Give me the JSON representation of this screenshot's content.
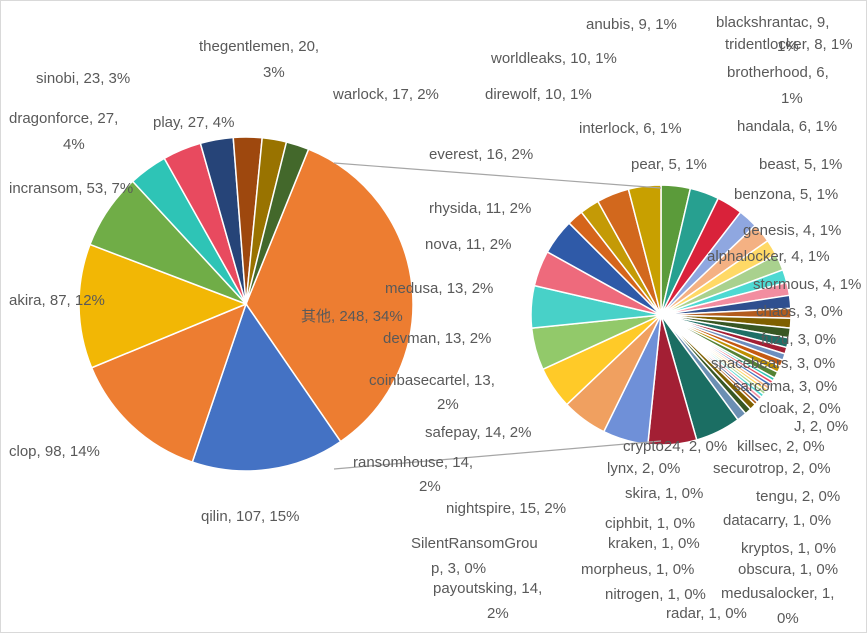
{
  "chart_data": {
    "type": "pie",
    "subtype": "pie-of-pie",
    "title": "",
    "main_pie": [
      {
        "label": "其他, 248, 34%",
        "name": "其他",
        "value": 248,
        "percent": "34%",
        "color": "#ed7d31"
      },
      {
        "label": "qilin, 107, 15%",
        "name": "qilin",
        "value": 107,
        "percent": "15%",
        "color": "#4472c4"
      },
      {
        "label": "clop, 98, 14%",
        "name": "clop",
        "value": 98,
        "percent": "14%",
        "color": "#ed7d31"
      },
      {
        "label": "akira, 87, 12%",
        "name": "akira",
        "value": 87,
        "percent": "12%",
        "color": "#f2b705"
      },
      {
        "label": "incransom, 53, 7%",
        "name": "incransom",
        "value": 53,
        "percent": "7%",
        "color": "#70ad47"
      },
      {
        "label": "dragonforce, 27, 4%",
        "name": "dragonforce",
        "value": 27,
        "percent": "4%",
        "color": "#2ec4b6"
      },
      {
        "label": "play, 27, 4%",
        "name": "play",
        "value": 27,
        "percent": "4%",
        "color": "#e84a5f"
      },
      {
        "label": "sinobi, 23, 3%",
        "name": "sinobi",
        "value": 23,
        "percent": "3%",
        "color": "#264478"
      },
      {
        "label": "thegentlemen, 20, 3%",
        "name": "thegentlemen",
        "value": 20,
        "percent": "3%",
        "color": "#9e480e"
      },
      {
        "label": "warlock, 17, 2%",
        "name": "warlock",
        "value": 17,
        "percent": "2%",
        "color": "#997300"
      },
      {
        "label": "everest, 16, 2%",
        "name": "everest",
        "value": 16,
        "percent": "2%",
        "color": "#43682b"
      }
    ],
    "secondary_pie": [
      {
        "label": "anubis, 9, 1%",
        "name": "anubis",
        "value": 9,
        "percent": "1%",
        "color": "#5b9b3a"
      },
      {
        "label": "blackshrantac, 9, 1%",
        "name": "blackshrantac",
        "value": 9,
        "percent": "1%",
        "color": "#27a090"
      },
      {
        "label": "tridentlocker, 8, 1%",
        "name": "tridentlocker",
        "value": 8,
        "percent": "1%",
        "color": "#d9223a"
      },
      {
        "label": "brotherhood, 6, 1%",
        "name": "brotherhood",
        "value": 6,
        "percent": "1%",
        "color": "#8fa7e0"
      },
      {
        "label": "handala, 6, 1%",
        "name": "handala",
        "value": 6,
        "percent": "1%",
        "color": "#f4b183"
      },
      {
        "label": "beast, 5, 1%",
        "name": "beast",
        "value": 5,
        "percent": "1%",
        "color": "#ffd966"
      },
      {
        "label": "benzona, 5, 1%",
        "name": "benzona",
        "value": 5,
        "percent": "1%",
        "color": "#a9d18e"
      },
      {
        "label": "genesis, 4, 1%",
        "name": "genesis",
        "value": 4,
        "percent": "1%",
        "color": "#4dd9d2"
      },
      {
        "label": "alphalocker, 4, 1%",
        "name": "alphalocker",
        "value": 4,
        "percent": "1%",
        "color": "#f28da0"
      },
      {
        "label": "stormous, 4, 1%",
        "name": "stormous",
        "value": 4,
        "percent": "1%",
        "color": "#2f4f8f"
      },
      {
        "label": "chaos, 3, 0%",
        "name": "chaos",
        "value": 3,
        "percent": "0%",
        "color": "#b35c1e"
      },
      {
        "label": "fuzu, 3, 0%",
        "name": "fuzu",
        "value": 3,
        "percent": "0%",
        "color": "#7f6000"
      },
      {
        "label": "spacebears, 3, 0%",
        "name": "spacebears",
        "value": 3,
        "percent": "0%",
        "color": "#385723"
      },
      {
        "label": "sarcoma, 3, 0%",
        "name": "sarcoma",
        "value": 3,
        "percent": "0%",
        "color": "#1f6f66"
      },
      {
        "label": "cloak, 2, 0%",
        "name": "cloak",
        "value": 2,
        "percent": "0%",
        "color": "#a31f34"
      },
      {
        "label": "J, 2, 0%",
        "name": "J",
        "value": 2,
        "percent": "0%",
        "color": "#6c8ebf"
      },
      {
        "label": "killsec, 2, 0%",
        "name": "killsec",
        "value": 2,
        "percent": "0%",
        "color": "#c55a11"
      },
      {
        "label": "securotrop, 2, 0%",
        "name": "securotrop",
        "value": 2,
        "percent": "0%",
        "color": "#bf9000"
      },
      {
        "label": "tengu, 2, 0%",
        "name": "tengu",
        "value": 2,
        "percent": "0%",
        "color": "#548235"
      },
      {
        "label": "datacarry, 1, 0%",
        "name": "datacarry",
        "value": 1,
        "percent": "0%",
        "color": "#2ec4b6"
      },
      {
        "label": "kryptos, 1, 0%",
        "name": "kryptos",
        "value": 1,
        "percent": "0%",
        "color": "#e84a5f"
      },
      {
        "label": "obscura, 1, 0%",
        "name": "obscura",
        "value": 1,
        "percent": "0%",
        "color": "#4472c4"
      },
      {
        "label": "medusalocker, 1, 0%",
        "name": "medusalocker",
        "value": 1,
        "percent": "0%",
        "color": "#f4b183"
      },
      {
        "label": "radar, 1, 0%",
        "name": "radar",
        "value": 1,
        "percent": "0%",
        "color": "#ffd966"
      },
      {
        "label": "nitrogen, 1, 0%",
        "name": "nitrogen",
        "value": 1,
        "percent": "0%",
        "color": "#a9d18e"
      },
      {
        "label": "morpheus, 1, 0%",
        "name": "morpheus",
        "value": 1,
        "percent": "0%",
        "color": "#4dd9d2"
      },
      {
        "label": "kraken, 1, 0%",
        "name": "kraken",
        "value": 1,
        "percent": "0%",
        "color": "#f28da0"
      },
      {
        "label": "ciphbit, 1, 0%",
        "name": "ciphbit",
        "value": 1,
        "percent": "0%",
        "color": "#2f4f8f"
      },
      {
        "label": "skira, 1, 0%",
        "name": "skira",
        "value": 1,
        "percent": "0%",
        "color": "#b35c1e"
      },
      {
        "label": "lynx, 2, 0%",
        "name": "lynx",
        "value": 2,
        "percent": "0%",
        "color": "#7f6000"
      },
      {
        "label": "crypto24, 2, 0%",
        "name": "crypto24",
        "value": 2,
        "percent": "0%",
        "color": "#385723"
      },
      {
        "label": "SilentRansomGroup, 3, 0%",
        "name": "SilentRansomGroup",
        "value": 3,
        "percent": "0%",
        "color": "#6b8fb3"
      },
      {
        "label": "payoutsking, 14, 2%",
        "name": "payoutsking",
        "value": 14,
        "percent": "2%",
        "color": "#1b6e63"
      },
      {
        "label": "nightspire, 15, 2%",
        "name": "nightspire",
        "value": 15,
        "percent": "2%",
        "color": "#a31f34"
      },
      {
        "label": "ransomhouse, 14, 2%",
        "name": "ransomhouse",
        "value": 14,
        "percent": "2%",
        "color": "#6f90d8"
      },
      {
        "label": "safepay, 14, 2%",
        "name": "safepay",
        "value": 14,
        "percent": "2%",
        "color": "#f0a060"
      },
      {
        "label": "coinbasecartel, 13, 2%",
        "name": "coinbasecartel",
        "value": 13,
        "percent": "2%",
        "color": "#ffca28"
      },
      {
        "label": "devman, 13, 2%",
        "name": "devman",
        "value": 13,
        "percent": "2%",
        "color": "#92c96a"
      },
      {
        "label": "medusa, 13, 2%",
        "name": "medusa",
        "value": 13,
        "percent": "2%",
        "color": "#48d1c8"
      },
      {
        "label": "nova, 11, 2%",
        "name": "nova",
        "value": 11,
        "percent": "2%",
        "color": "#ee6a7c"
      },
      {
        "label": "rhysida, 11, 2%",
        "name": "rhysida",
        "value": 11,
        "percent": "2%",
        "color": "#2f5aa8"
      },
      {
        "label": "pear, 5, 1%",
        "name": "pear",
        "value": 5,
        "percent": "1%",
        "color": "#d5651b"
      },
      {
        "label": "interlock, 6, 1%",
        "name": "interlock",
        "value": 6,
        "percent": "1%",
        "color": "#c49a06"
      },
      {
        "label": "direwolf, 10, 1%",
        "name": "direwolf",
        "value": 10,
        "percent": "1%",
        "color": "#d2681d"
      },
      {
        "label": "worldleaks, 10, 1%",
        "name": "worldleaks",
        "value": 10,
        "percent": "1%",
        "color": "#c8a000"
      }
    ]
  }
}
